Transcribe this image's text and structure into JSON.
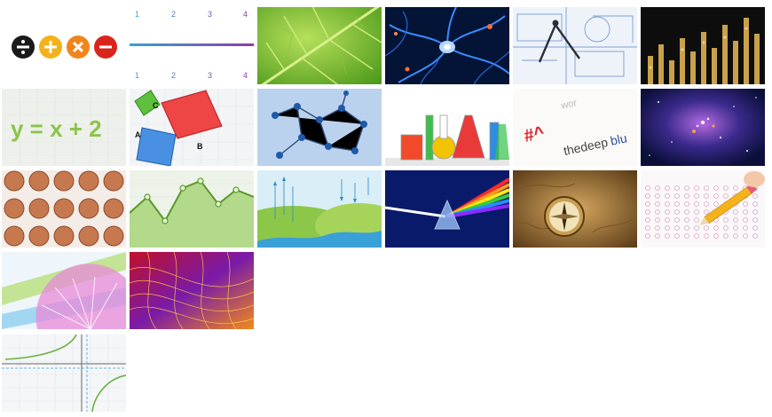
{
  "ruler": {
    "top_numbers": [
      "1",
      "2",
      "3",
      "4"
    ],
    "bottom_numbers": [
      "1",
      "2",
      "3",
      "4"
    ]
  },
  "equation": {
    "text": "y = x + 2"
  },
  "pythagoras": {
    "labels": [
      "C",
      "A",
      "B"
    ]
  },
  "word_card": {
    "symbols": "#^",
    "words": [
      "thedeep",
      "blu",
      "wor"
    ]
  },
  "tiles": [
    "math-operators-icon",
    "number-line-ruler",
    "green-leaf-closeup",
    "blue-neurons",
    "blueprint-compass",
    "city-bar-chart",
    "linear-equation-board",
    "pythagorean-squares",
    "molecule-lattice",
    "chemistry-flasks",
    "word-symbols-card",
    "galaxy-starfield",
    "pennies-grid",
    "line-graph-green",
    "water-cycle-landscape",
    "prism-rainbow",
    "antique-compass-map",
    "bubble-test-pencil",
    "protractor-rulers",
    "color-wave-mesh",
    "hyperbola-graph"
  ]
}
